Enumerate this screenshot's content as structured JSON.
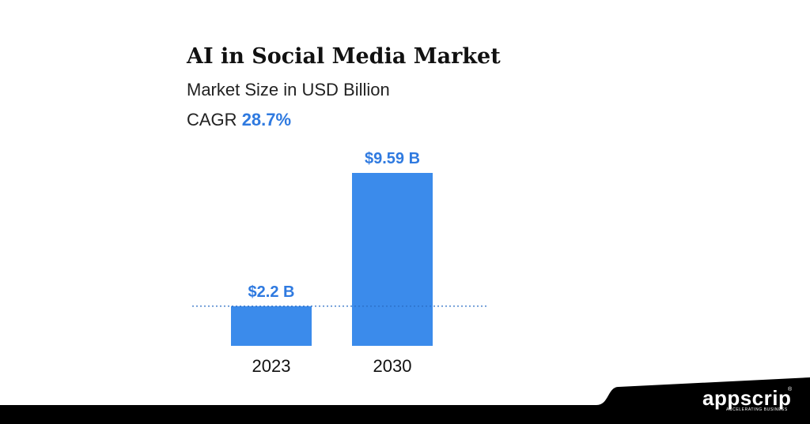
{
  "header": {
    "title": "AI in Social Media Market",
    "subtitle": "Market Size in USD Billion",
    "cagr_label": "CAGR",
    "cagr_value": "28.7%"
  },
  "chart_data": {
    "type": "bar",
    "categories": [
      "2023",
      "2030"
    ],
    "values": [
      2.2,
      9.59
    ],
    "data_labels": [
      "$2.2 B",
      "$9.59 B"
    ],
    "title": "AI in Social Media Market",
    "subtitle": "Market Size in USD Billion",
    "reference_line": {
      "value": 2.2,
      "style": "dotted"
    },
    "grid": false,
    "legend": "none"
  },
  "colors": {
    "bar": "#3b8beb",
    "label": "#2f7ae0",
    "reference_line": "#2a6cc4",
    "footer": "#000000",
    "text": "#111111"
  },
  "footer": {
    "brand": "appscrip",
    "tagline": "ACCELERATING BUSINESS",
    "trademark": "®"
  }
}
